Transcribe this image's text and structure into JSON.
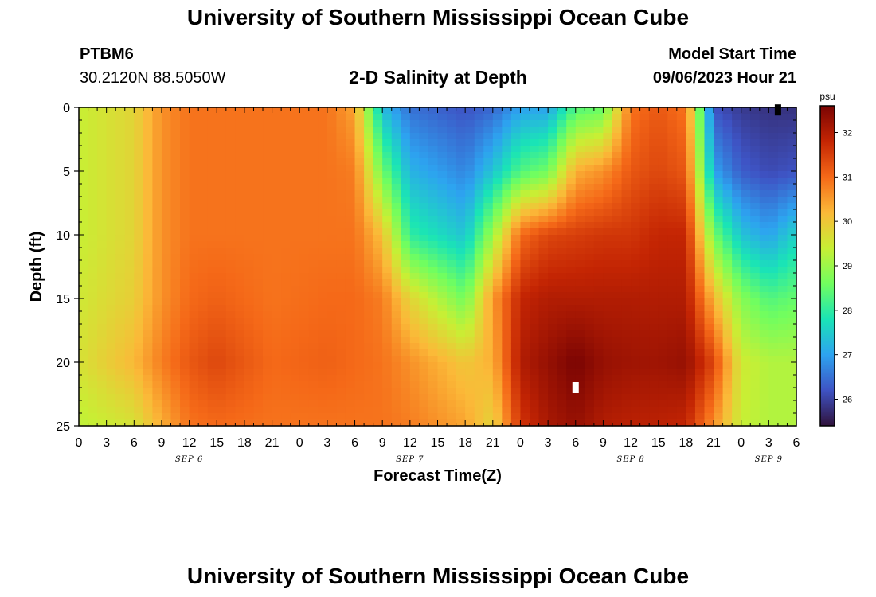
{
  "header": {
    "title": "University of Southern Mississippi Ocean Cube",
    "station_id": "PTBM6",
    "station_coords": "30.2120N  88.5050W",
    "subtitle": "2-D Salinity at Depth",
    "model_start_label": "Model Start Time",
    "model_start_value": "09/06/2023 Hour 21"
  },
  "footer": {
    "title": "University of Southern Mississippi Ocean Cube"
  },
  "chart_data": {
    "type": "heatmap",
    "title": "2-D Salinity at Depth",
    "xlabel": "Forecast Time(Z)",
    "ylabel": "Depth (ft)",
    "x_range_hours_from_sep6_00z": [
      0,
      78
    ],
    "ylim": [
      25,
      0
    ],
    "y_ticks": [
      0,
      5,
      10,
      15,
      20,
      25
    ],
    "x_ticks": [
      {
        "hour": 0,
        "label": "0"
      },
      {
        "hour": 3,
        "label": "3"
      },
      {
        "hour": 6,
        "label": "6"
      },
      {
        "hour": 9,
        "label": "9"
      },
      {
        "hour": 12,
        "label": "12"
      },
      {
        "hour": 15,
        "label": "15"
      },
      {
        "hour": 18,
        "label": "18"
      },
      {
        "hour": 21,
        "label": "21"
      },
      {
        "hour": 24,
        "label": "0"
      },
      {
        "hour": 27,
        "label": "3"
      },
      {
        "hour": 30,
        "label": "6"
      },
      {
        "hour": 33,
        "label": "9"
      },
      {
        "hour": 36,
        "label": "12"
      },
      {
        "hour": 39,
        "label": "15"
      },
      {
        "hour": 42,
        "label": "18"
      },
      {
        "hour": 45,
        "label": "21"
      },
      {
        "hour": 48,
        "label": "0"
      },
      {
        "hour": 51,
        "label": "3"
      },
      {
        "hour": 54,
        "label": "6"
      },
      {
        "hour": 57,
        "label": "9"
      },
      {
        "hour": 60,
        "label": "12"
      },
      {
        "hour": 63,
        "label": "15"
      },
      {
        "hour": 66,
        "label": "18"
      },
      {
        "hour": 69,
        "label": "21"
      },
      {
        "hour": 72,
        "label": "0"
      },
      {
        "hour": 75,
        "label": "3"
      },
      {
        "hour": 78,
        "label": "6"
      }
    ],
    "day_labels": [
      {
        "hour": 12,
        "label": "SEP 6"
      },
      {
        "hour": 36,
        "label": "SEP 7"
      },
      {
        "hour": 60,
        "label": "SEP 8"
      },
      {
        "hour": 75,
        "label": "SEP 9"
      }
    ],
    "colorbar": {
      "unit": "psu",
      "range": [
        25.4,
        32.6
      ],
      "ticks": [
        26,
        27,
        28,
        29,
        30,
        31,
        32
      ],
      "colors": [
        "#30123b",
        "#3e53c4",
        "#2da3f0",
        "#1ae4b6",
        "#71fe5f",
        "#c8ef34",
        "#fbb938",
        "#f56918",
        "#c42503",
        "#7a0403"
      ]
    },
    "salinity_profiles_psu": {
      "depths_ft": [
        0,
        5,
        10,
        15,
        20,
        25
      ],
      "columns": [
        {
          "hour": 0,
          "values": [
            29.4,
            29.4,
            29.4,
            29.5,
            29.6,
            29.3
          ]
        },
        {
          "hour": 6,
          "values": [
            29.8,
            29.8,
            29.8,
            29.9,
            30.2,
            29.6
          ]
        },
        {
          "hour": 9,
          "values": [
            30.6,
            30.6,
            30.6,
            30.6,
            30.8,
            30.3
          ]
        },
        {
          "hour": 12,
          "values": [
            30.9,
            30.9,
            30.9,
            31.0,
            31.2,
            30.9
          ]
        },
        {
          "hour": 15,
          "values": [
            30.9,
            30.9,
            30.9,
            31.1,
            31.4,
            31.0
          ]
        },
        {
          "hour": 21,
          "values": [
            30.9,
            30.9,
            30.9,
            30.9,
            31.0,
            30.9
          ]
        },
        {
          "hour": 27,
          "values": [
            30.9,
            30.9,
            30.9,
            31.0,
            31.1,
            30.9
          ]
        },
        {
          "hour": 30,
          "values": [
            30.4,
            30.8,
            30.9,
            31.0,
            31.0,
            30.9
          ]
        },
        {
          "hour": 33,
          "values": [
            27.3,
            28.6,
            30.1,
            30.8,
            30.9,
            30.9
          ]
        },
        {
          "hour": 36,
          "values": [
            26.5,
            27.2,
            28.0,
            29.8,
            30.6,
            30.8
          ]
        },
        {
          "hour": 42,
          "values": [
            26.2,
            26.7,
            27.4,
            28.6,
            30.0,
            30.4
          ]
        },
        {
          "hour": 45,
          "values": [
            26.4,
            27.4,
            29.0,
            30.5,
            30.3,
            29.8
          ]
        },
        {
          "hour": 48,
          "values": [
            27.0,
            28.3,
            31.0,
            31.8,
            32.0,
            31.6
          ]
        },
        {
          "hour": 51,
          "values": [
            27.0,
            28.6,
            31.4,
            32.0,
            32.3,
            32.1
          ]
        },
        {
          "hour": 54,
          "values": [
            28.3,
            30.3,
            31.5,
            32.0,
            32.6,
            32.3
          ]
        },
        {
          "hour": 57,
          "values": [
            28.5,
            30.6,
            31.6,
            32.0,
            32.3,
            32.0
          ]
        },
        {
          "hour": 60,
          "values": [
            30.9,
            31.2,
            31.6,
            32.0,
            32.2,
            31.9
          ]
        },
        {
          "hour": 63,
          "values": [
            31.2,
            31.4,
            31.8,
            32.0,
            32.2,
            31.9
          ]
        },
        {
          "hour": 66,
          "values": [
            30.9,
            31.2,
            31.8,
            32.0,
            32.3,
            31.8
          ]
        },
        {
          "hour": 69,
          "values": [
            26.2,
            27.0,
            28.6,
            30.2,
            31.4,
            30.6
          ]
        },
        {
          "hour": 72,
          "values": [
            25.9,
            26.3,
            27.4,
            28.8,
            29.5,
            29.4
          ]
        },
        {
          "hour": 75,
          "values": [
            25.8,
            26.1,
            27.0,
            28.3,
            29.2,
            29.2
          ]
        },
        {
          "hour": 78,
          "values": [
            25.8,
            26.2,
            27.6,
            28.5,
            29.2,
            29.2
          ]
        }
      ]
    },
    "markers": [
      {
        "hour": 54,
        "depth_ft": 22,
        "color": "#ffffff"
      },
      {
        "hour": 76,
        "depth_ft": 0.2,
        "color": "#000000"
      }
    ]
  }
}
